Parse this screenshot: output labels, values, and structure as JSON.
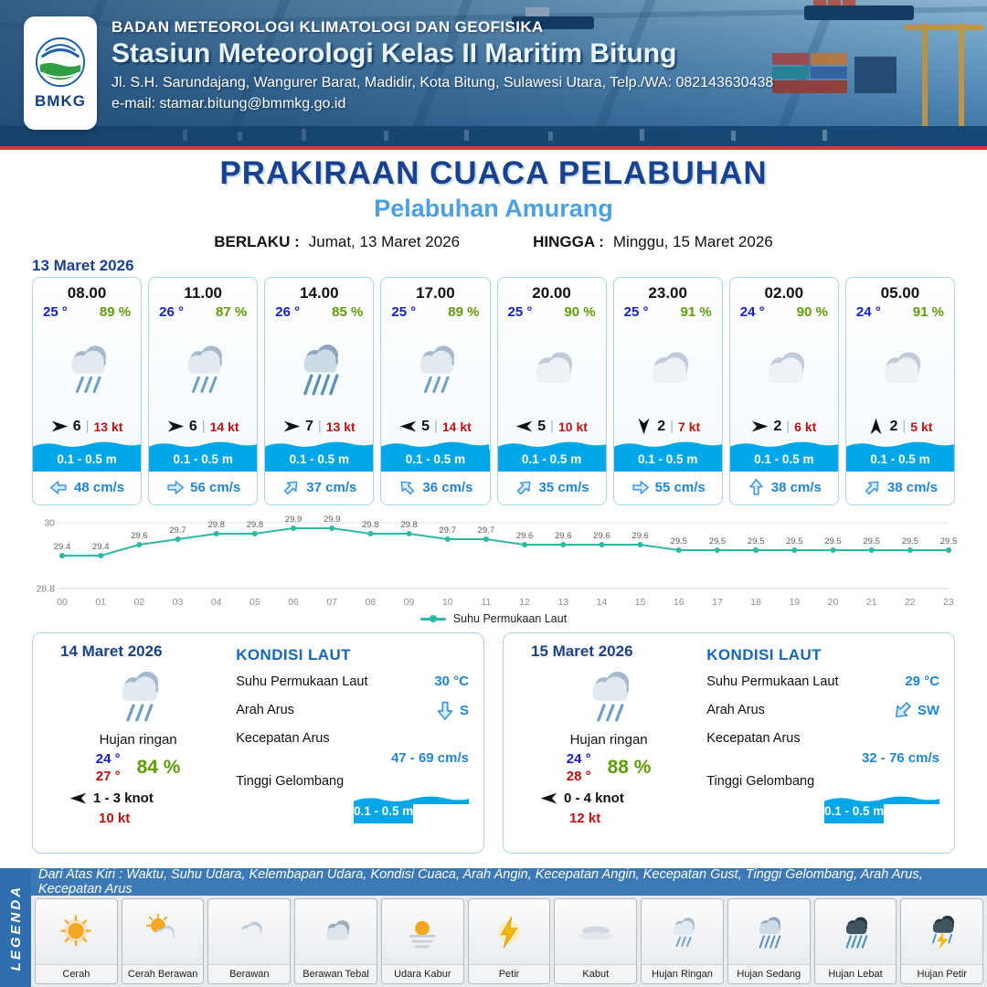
{
  "header": {
    "logo_text": "BMKG",
    "agency": "BADAN METEOROLOGI KLIMATOLOGI DAN GEOFISIKA",
    "station": "Stasiun Meteorologi Kelas II Maritim Bitung",
    "address": "Jl. S.H. Sarundajang, Wangurer Barat, Madidir, Kota Bitung, Sulawesi Utara, Telp./WA: 082143630438",
    "email": "e-mail: stamar.bitung@bmmkg.go.id"
  },
  "title": {
    "main": "PRAKIRAAN CUACA PELABUHAN",
    "subtitle": "Pelabuhan Amurang",
    "berlaku_label": "BERLAKU :",
    "berlaku_value": "Jumat, 13 Maret 2026",
    "hingga_label": "HINGGA :",
    "hingga_value": "Minggu, 15 Maret 2026"
  },
  "ui": {
    "divider": "|"
  },
  "forecast": {
    "date": "13 Maret 2026",
    "cards": [
      {
        "time": "08.00",
        "temp": "25 °",
        "humidity": "89 %",
        "icon": "hujan-ringan",
        "wind_dir": "right",
        "wind": "6",
        "gust": "13 kt",
        "wave": "0.1 - 0.5 m",
        "current_dir": "left",
        "current": "48 cm/s"
      },
      {
        "time": "11.00",
        "temp": "26 °",
        "humidity": "87 %",
        "icon": "hujan-ringan",
        "wind_dir": "right",
        "wind": "6",
        "gust": "14 kt",
        "wave": "0.1 - 0.5 m",
        "current_dir": "right",
        "current": "56 cm/s"
      },
      {
        "time": "14.00",
        "temp": "26 °",
        "humidity": "85 %",
        "icon": "hujan-sedang",
        "wind_dir": "right",
        "wind": "7",
        "gust": "13 kt",
        "wave": "0.1 - 0.5 m",
        "current_dir": "up-right",
        "current": "37 cm/s"
      },
      {
        "time": "17.00",
        "temp": "25 °",
        "humidity": "89 %",
        "icon": "hujan-ringan",
        "wind_dir": "left",
        "wind": "5",
        "gust": "14 kt",
        "wave": "0.1 - 0.5 m",
        "current_dir": "up-left",
        "current": "36 cm/s"
      },
      {
        "time": "20.00",
        "temp": "25 °",
        "humidity": "90 %",
        "icon": "berawan",
        "wind_dir": "left",
        "wind": "5",
        "gust": "10 kt",
        "wave": "0.1 - 0.5 m",
        "current_dir": "up-right",
        "current": "35 cm/s"
      },
      {
        "time": "23.00",
        "temp": "25 °",
        "humidity": "91 %",
        "icon": "berawan",
        "wind_dir": "down",
        "wind": "2",
        "gust": "7 kt",
        "wave": "0.1 - 0.5 m",
        "current_dir": "right",
        "current": "55 cm/s"
      },
      {
        "time": "02.00",
        "temp": "24 °",
        "humidity": "90 %",
        "icon": "berawan",
        "wind_dir": "right",
        "wind": "2",
        "gust": "6 kt",
        "wave": "0.1 - 0.5 m",
        "current_dir": "up",
        "current": "38 cm/s"
      },
      {
        "time": "05.00",
        "temp": "24 °",
        "humidity": "91 %",
        "icon": "berawan",
        "wind_dir": "up",
        "wind": "2",
        "gust": "5 kt",
        "wave": "0.1 - 0.5 m",
        "current_dir": "up-right",
        "current": "38 cm/s"
      }
    ]
  },
  "chart_data": {
    "type": "line",
    "series": [
      {
        "name": "Suhu Permukaan Laut",
        "values": [
          29.4,
          29.4,
          29.6,
          29.7,
          29.8,
          29.8,
          29.9,
          29.9,
          29.8,
          29.8,
          29.7,
          29.7,
          29.6,
          29.6,
          29.6,
          29.6,
          29.5,
          29.5,
          29.5,
          29.5,
          29.5,
          29.5,
          29.5,
          29.5
        ]
      }
    ],
    "x": [
      "00",
      "01",
      "02",
      "03",
      "04",
      "05",
      "06",
      "07",
      "08",
      "09",
      "10",
      "11",
      "12",
      "13",
      "14",
      "15",
      "16",
      "17",
      "18",
      "19",
      "20",
      "21",
      "22",
      "23"
    ],
    "ylim": [
      28.8,
      30
    ],
    "y_ticks": [
      "28.8",
      "30"
    ],
    "legend_label": "Suhu Permukaan Laut",
    "line_color": "#2cb9a5",
    "grid": true,
    "legend_position": "bottom"
  },
  "days": [
    {
      "date": "14 Maret 2026",
      "icon": "hujan-ringan",
      "condition": "Hujan ringan",
      "temp_min": "24 °",
      "temp_max": "27 °",
      "humidity": "84 %",
      "wind_dir": "left",
      "wind": "1 - 3 knot",
      "gust": "10 kt",
      "sea": {
        "heading": "KONDISI LAUT",
        "sst_label": "Suhu Permukaan Laut",
        "sst": "30 °C",
        "arus_dir_label": "Arah Arus",
        "arus_dir": "down",
        "arus_dir_text": "S",
        "arus_speed_label": "Kecepatan Arus",
        "arus_speed": "47 - 69 cm/s",
        "wave_label": "Tinggi Gelombang",
        "wave": "0.1 - 0.5 m"
      }
    },
    {
      "date": "15 Maret 2026",
      "icon": "hujan-ringan",
      "condition": "Hujan ringan",
      "temp_min": "24 °",
      "temp_max": "28 °",
      "humidity": "88 %",
      "wind_dir": "left",
      "wind": "0 - 4 knot",
      "gust": "12 kt",
      "sea": {
        "heading": "KONDISI LAUT",
        "sst_label": "Suhu Permukaan Laut",
        "sst": "29 °C",
        "arus_dir_label": "Arah Arus",
        "arus_dir": "down-left",
        "arus_dir_text": "SW",
        "arus_speed_label": "Kecepatan Arus",
        "arus_speed": "32 - 76 cm/s",
        "wave_label": "Tinggi Gelombang",
        "wave": "0.1 - 0.5 m"
      }
    }
  ],
  "legend": {
    "strip": "Dari Atas Kiri : Waktu, Suhu Udara, Kelembapan Udara, Kondisi Cuaca, Arah Angin, Kecepatan Angin, Kecepatan Gust, Tinggi Gelombang, Arah Arus, Kecepatan Arus",
    "sidebar": "LEGENDA",
    "items": [
      {
        "icon": "cerah",
        "label": "Cerah"
      },
      {
        "icon": "cerah-berawan",
        "label": "Cerah Berawan"
      },
      {
        "icon": "berawan",
        "label": "Berawan"
      },
      {
        "icon": "berawan-tebal",
        "label": "Berawan Tebal"
      },
      {
        "icon": "udara-kabur",
        "label": "Udara Kabur"
      },
      {
        "icon": "petir",
        "label": "Petir"
      },
      {
        "icon": "kabut",
        "label": "Kabut"
      },
      {
        "icon": "hujan-ringan",
        "label": "Hujan Ringan"
      },
      {
        "icon": "hujan-sedang",
        "label": "Hujan Sedang"
      },
      {
        "icon": "hujan-lebat",
        "label": "Hujan Lebat"
      },
      {
        "icon": "hujan-petir",
        "label": "Hujan Petir"
      }
    ]
  },
  "colors": {
    "accent_blue": "#1a418f",
    "light_blue": "#4aa0e0",
    "wave_blue": "#00a7e8",
    "temp_blue": "#1520cf",
    "humidity_green": "#5f9c07",
    "gust_red": "#c40f0f",
    "line_teal": "#2cb9a5"
  }
}
